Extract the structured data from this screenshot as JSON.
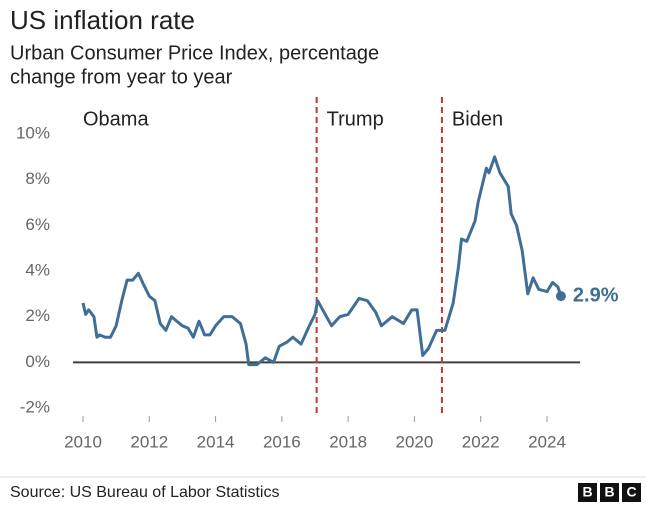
{
  "chart_data": {
    "type": "line",
    "title": "US inflation rate",
    "subtitle": [
      "Urban Consumer Price Index, percentage",
      "change from year to year"
    ],
    "source": "Source: US Bureau of Labor Statistics",
    "logo": [
      "B",
      "B",
      "C"
    ],
    "era_labels": [
      "Obama",
      "Trump",
      "Biden"
    ],
    "dividers": [
      2017.05,
      2020.83
    ],
    "divider_color": "#c0392b",
    "x": [
      2010.0,
      2010.08,
      2010.17,
      2010.33,
      2010.42,
      2010.5,
      2010.67,
      2010.83,
      2011.0,
      2011.17,
      2011.33,
      2011.5,
      2011.67,
      2011.83,
      2012.0,
      2012.17,
      2012.33,
      2012.5,
      2012.67,
      2012.83,
      2013.0,
      2013.17,
      2013.33,
      2013.5,
      2013.67,
      2013.83,
      2014.0,
      2014.25,
      2014.5,
      2014.75,
      2014.92,
      2015.0,
      2015.25,
      2015.5,
      2015.75,
      2015.92,
      2016.17,
      2016.33,
      2016.58,
      2016.83,
      2017.0,
      2017.08,
      2017.5,
      2017.75,
      2018.0,
      2018.33,
      2018.58,
      2018.83,
      2018.92,
      2019.0,
      2019.33,
      2019.67,
      2019.92,
      2020.08,
      2020.25,
      2020.42,
      2020.67,
      2020.92,
      2021.17,
      2021.33,
      2021.42,
      2021.58,
      2021.83,
      2021.92,
      2022.17,
      2022.25,
      2022.42,
      2022.58,
      2022.83,
      2022.92,
      2023.08,
      2023.25,
      2023.42,
      2023.58,
      2023.75,
      2024.0,
      2024.17,
      2024.33,
      2024.42
    ],
    "series": [
      {
        "name": "US inflation rate",
        "color": "#3f6f98",
        "values": [
          2.6,
          2.1,
          2.3,
          2.0,
          1.1,
          1.2,
          1.1,
          1.1,
          1.6,
          2.7,
          3.6,
          3.6,
          3.9,
          3.4,
          2.9,
          2.7,
          1.7,
          1.4,
          2.0,
          1.8,
          1.6,
          1.5,
          1.1,
          1.8,
          1.2,
          1.2,
          1.6,
          2.0,
          2.0,
          1.7,
          0.8,
          -0.1,
          -0.1,
          0.2,
          0.0,
          0.7,
          0.9,
          1.1,
          0.8,
          1.6,
          2.1,
          2.7,
          1.6,
          2.0,
          2.1,
          2.8,
          2.7,
          2.2,
          1.9,
          1.6,
          2.0,
          1.7,
          2.3,
          2.3,
          0.3,
          0.6,
          1.4,
          1.4,
          2.6,
          4.2,
          5.4,
          5.3,
          6.2,
          7.0,
          8.5,
          8.3,
          9.0,
          8.3,
          7.7,
          6.5,
          6.0,
          4.9,
          3.0,
          3.7,
          3.2,
          3.1,
          3.5,
          3.3,
          2.9
        ],
        "value_labels": [
          null,
          null,
          null,
          null,
          null,
          null,
          null,
          null,
          null,
          null,
          null,
          null,
          null,
          null,
          null,
          null,
          null,
          null,
          null,
          null,
          null,
          null,
          null,
          null,
          null,
          null,
          null,
          null,
          null,
          null,
          null,
          null,
          null,
          null,
          null,
          null,
          null,
          null,
          null,
          null,
          null,
          null,
          null,
          null,
          null,
          null,
          null,
          null,
          null,
          null,
          null,
          null,
          null,
          null,
          null,
          null,
          null,
          null,
          null,
          null,
          null,
          null,
          null,
          null,
          null,
          null,
          null,
          null,
          null,
          null,
          null,
          null,
          null,
          null,
          null,
          null,
          null,
          null,
          "2.9%"
        ]
      }
    ],
    "xlim": [
      2009.7,
      2025.0
    ],
    "xticks": [
      2010,
      2012,
      2014,
      2016,
      2018,
      2020,
      2022,
      2024
    ],
    "ylim": [
      -2,
      10
    ],
    "yticks": [
      {
        "value": -2,
        "label": "-2%"
      },
      {
        "value": 0,
        "label": "0%"
      },
      {
        "value": 2,
        "label": "2%"
      },
      {
        "value": 4,
        "label": "4%"
      },
      {
        "value": 6,
        "label": "6%"
      },
      {
        "value": 8,
        "label": "8%"
      },
      {
        "value": 10,
        "label": "10%"
      }
    ],
    "grid": false
  }
}
